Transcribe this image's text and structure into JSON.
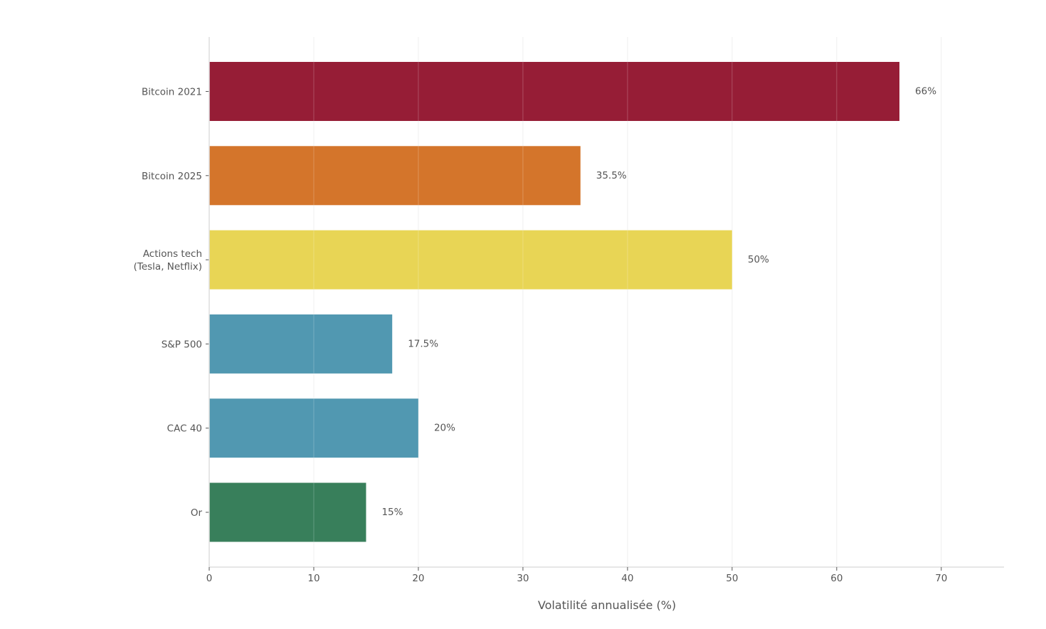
{
  "chart_data": {
    "type": "bar",
    "orientation": "horizontal",
    "title": "",
    "xlabel": "Volatilité annualisée (%)",
    "ylabel": "",
    "xlim": [
      0,
      76
    ],
    "x_ticks": [
      0,
      10,
      20,
      30,
      40,
      50,
      60,
      70
    ],
    "grid": true,
    "categories": [
      [
        "Bitcoin 2021"
      ],
      [
        "Bitcoin 2025"
      ],
      [
        "Actions tech",
        "(Tesla, Netflix)"
      ],
      [
        "S&P 500"
      ],
      [
        "CAC 40"
      ],
      [
        "Or"
      ]
    ],
    "values": [
      66,
      35.5,
      50,
      17.5,
      20,
      15
    ],
    "value_labels": [
      "66%",
      "35.5%",
      "50%",
      "17.5%",
      "20%",
      "15%"
    ],
    "colors": [
      "#961D36",
      "#D4752B",
      "#E8D555",
      "#5198B1",
      "#5198B1",
      "#387F5B"
    ]
  }
}
